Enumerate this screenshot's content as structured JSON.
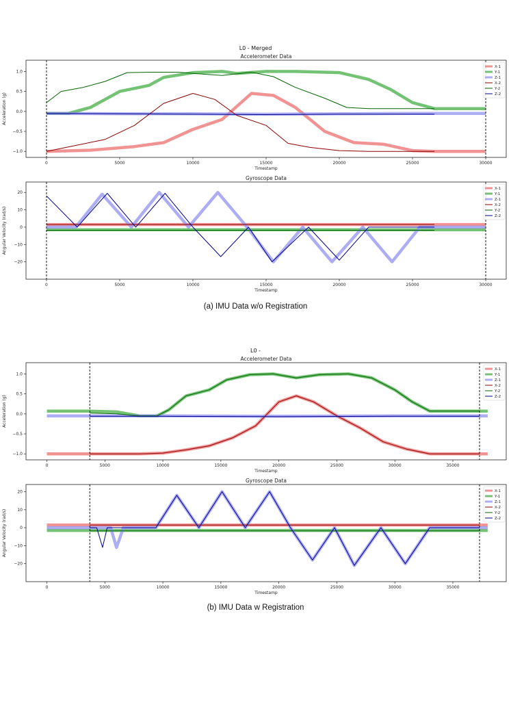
{
  "figures": [
    {
      "title": "L0 - Merged",
      "caption": "(a) IMU Data w/o Registration",
      "split_id": "a"
    },
    {
      "title": "L0 -",
      "caption": "(b) IMU Data w Registration",
      "split_id": "b"
    }
  ],
  "legend_labels": [
    "X-1",
    "Y-1",
    "Z-1",
    "X-2",
    "Y-2",
    "Z-2"
  ],
  "colors": {
    "x1": "#f08080",
    "y1": "#5cb85c",
    "z1": "#8a8aee",
    "x2": "#8b0000",
    "y2": "#006400",
    "z2": "#00008b"
  },
  "chart_data": [
    {
      "id": "a-acc",
      "type": "line",
      "title": "Accelerometer Data",
      "xlabel": "Timestamp",
      "ylabel": "Acceleration (g)",
      "xlim": [
        -1400,
        31400
      ],
      "ylim": [
        -1.15,
        1.28
      ],
      "xticks": [
        0,
        5000,
        10000,
        15000,
        20000,
        25000,
        30000
      ],
      "yticks": [
        -1.0,
        -0.5,
        0.0,
        0.5,
        1.0
      ],
      "ytick_labels": [
        "−1.0",
        "−0.5",
        "0.0",
        "0.5",
        "1.0"
      ],
      "vlines": [
        0,
        30000
      ],
      "series": [
        {
          "name": "X-1",
          "x": [
            0,
            3000,
            6000,
            8000,
            10000,
            12000,
            14000,
            15500,
            17000,
            19000,
            21000,
            23000,
            25000,
            26500,
            30000
          ],
          "y": [
            -1.0,
            -0.97,
            -0.88,
            -0.78,
            -0.45,
            -0.2,
            0.45,
            0.4,
            0.1,
            -0.5,
            -0.78,
            -0.82,
            -0.98,
            -1.0,
            -1.0
          ]
        },
        {
          "name": "Y-1",
          "x": [
            0,
            1500,
            3000,
            5000,
            7000,
            8000,
            10000,
            12000,
            13000,
            15000,
            17000,
            20000,
            22000,
            23500,
            25000,
            26500,
            30000
          ],
          "y": [
            -0.05,
            -0.05,
            0.1,
            0.5,
            0.65,
            0.85,
            0.97,
            1.0,
            0.95,
            1.0,
            1.0,
            0.97,
            0.8,
            0.55,
            0.22,
            0.07,
            0.07
          ]
        },
        {
          "name": "Z-1",
          "x": [
            0,
            5000,
            10000,
            15000,
            20000,
            25000,
            30000
          ],
          "y": [
            -0.05,
            -0.06,
            -0.06,
            -0.07,
            -0.06,
            -0.05,
            -0.05
          ]
        },
        {
          "name": "X-2",
          "x": [
            0,
            2000,
            4000,
            6000,
            8000,
            10000,
            11500,
            13000,
            15000,
            16500,
            18000,
            20000,
            22000,
            24000,
            26500
          ],
          "y": [
            -1.0,
            -0.85,
            -0.7,
            -0.35,
            0.2,
            0.45,
            0.3,
            -0.1,
            -0.35,
            -0.8,
            -0.9,
            -0.98,
            -1.0,
            -1.0,
            -1.0
          ]
        },
        {
          "name": "Y-2",
          "x": [
            0,
            1000,
            2500,
            4000,
            5500,
            7000,
            9000,
            10000,
            12000,
            14000,
            15500,
            17000,
            19000,
            20500,
            22000,
            24000,
            26500
          ],
          "y": [
            0.22,
            0.5,
            0.6,
            0.75,
            0.97,
            0.98,
            0.98,
            0.95,
            0.9,
            0.98,
            0.87,
            0.6,
            0.33,
            0.1,
            0.07,
            0.07,
            0.07
          ]
        },
        {
          "name": "Z-2",
          "x": [
            0,
            5000,
            10000,
            15000,
            20000,
            26500
          ],
          "y": [
            -0.05,
            -0.06,
            -0.07,
            -0.08,
            -0.07,
            -0.07
          ]
        }
      ]
    },
    {
      "id": "a-gyro",
      "type": "line",
      "title": "Gyroscope Data",
      "xlabel": "Timestamp",
      "ylabel": "Angular Velocity (rad/s)",
      "xlim": [
        -1400,
        31400
      ],
      "ylim": [
        -30,
        26
      ],
      "xticks": [
        0,
        5000,
        10000,
        15000,
        20000,
        25000,
        30000
      ],
      "yticks": [
        -20,
        -10,
        0,
        10,
        20
      ],
      "ytick_labels": [
        "−20",
        "−10",
        "0",
        "10",
        "20"
      ],
      "vlines": [
        0,
        30000
      ],
      "series": [
        {
          "name": "X-1",
          "x": [
            0,
            30000
          ],
          "y": [
            1.5,
            1.5
          ]
        },
        {
          "name": "Y-1",
          "x": [
            0,
            30000
          ],
          "y": [
            -1.5,
            -1.5
          ]
        },
        {
          "name": "Z-1",
          "x": [
            0,
            2000,
            3800,
            5800,
            7700,
            9700,
            11700,
            13700,
            15500,
            17500,
            19500,
            21600,
            23600,
            25500,
            30000
          ],
          "y": [
            0,
            0,
            19,
            0,
            20,
            0,
            20,
            0,
            -20,
            0,
            -20,
            0,
            -20,
            0,
            0
          ]
        },
        {
          "name": "X-2",
          "x": [
            0,
            26500
          ],
          "y": [
            1.5,
            1.5
          ]
        },
        {
          "name": "Y-2",
          "x": [
            0,
            26500
          ],
          "y": [
            -1.8,
            -1.8
          ]
        },
        {
          "name": "Z-2",
          "x": [
            0,
            2100,
            4150,
            6100,
            8100,
            10000,
            11900,
            13800,
            15400,
            17900,
            20000,
            22000,
            26500
          ],
          "y": [
            18,
            0,
            19.5,
            0,
            19.5,
            0,
            -17,
            0,
            -20,
            0,
            -19,
            0,
            0
          ]
        }
      ]
    },
    {
      "id": "b-acc",
      "type": "line",
      "title": "Accelerometer Data",
      "xlabel": "Timestamp",
      "ylabel": "Acceleration (g)",
      "xlim": [
        -1800,
        39600
      ],
      "ylim": [
        -1.15,
        1.28
      ],
      "xticks": [
        0,
        5000,
        10000,
        15000,
        20000,
        25000,
        30000,
        35000
      ],
      "yticks": [
        -1.0,
        -0.5,
        0.0,
        0.5,
        1.0
      ],
      "ytick_labels": [
        "−1.0",
        "−0.5",
        "0.0",
        "0.5",
        "1.0"
      ],
      "vlines": [
        3700,
        37300
      ],
      "series": [
        {
          "name": "X-1",
          "x": [
            0,
            8000,
            10000,
            12000,
            14000,
            16000,
            18000,
            20000,
            21500,
            23000,
            25000,
            27000,
            29000,
            31000,
            33000,
            38000
          ],
          "y": [
            -1.0,
            -1.0,
            -0.98,
            -0.9,
            -0.8,
            -0.6,
            -0.3,
            0.3,
            0.45,
            0.3,
            -0.05,
            -0.35,
            -0.7,
            -0.88,
            -1.0,
            -1.0
          ]
        },
        {
          "name": "Y-1",
          "x": [
            0,
            3500,
            6000,
            8000,
            9500,
            10500,
            12000,
            14000,
            15500,
            17500,
            19500,
            21500,
            23500,
            26000,
            28000,
            30000,
            31500,
            33000,
            38000
          ],
          "y": [
            0.07,
            0.07,
            0.05,
            -0.05,
            -0.05,
            0.1,
            0.45,
            0.6,
            0.85,
            0.98,
            1.0,
            0.9,
            0.98,
            1.0,
            0.9,
            0.6,
            0.3,
            0.07,
            0.07
          ]
        },
        {
          "name": "Z-1",
          "x": [
            0,
            10000,
            20000,
            30000,
            38000
          ],
          "y": [
            -0.05,
            -0.05,
            -0.06,
            -0.05,
            -0.05
          ]
        },
        {
          "name": "X-2",
          "x": [
            3700,
            8000,
            10000,
            12000,
            14000,
            16000,
            18000,
            20000,
            21500,
            23000,
            25000,
            27000,
            29000,
            31000,
            33000,
            37300
          ],
          "y": [
            -1.0,
            -1.0,
            -0.98,
            -0.9,
            -0.8,
            -0.6,
            -0.3,
            0.3,
            0.45,
            0.3,
            -0.05,
            -0.35,
            -0.7,
            -0.88,
            -1.0,
            -1.0
          ]
        },
        {
          "name": "Y-2",
          "x": [
            3700,
            6000,
            8000,
            9500,
            10500,
            12000,
            14000,
            15500,
            17500,
            19500,
            21500,
            23500,
            26000,
            28000,
            30000,
            31500,
            33000,
            37300
          ],
          "y": [
            0.02,
            0.0,
            -0.05,
            -0.05,
            0.1,
            0.45,
            0.6,
            0.85,
            0.98,
            1.0,
            0.9,
            0.98,
            1.0,
            0.9,
            0.6,
            0.3,
            0.07,
            0.07
          ]
        },
        {
          "name": "Z-2",
          "x": [
            3700,
            10000,
            20000,
            30000,
            37300
          ],
          "y": [
            -0.06,
            -0.06,
            -0.07,
            -0.06,
            -0.06
          ]
        }
      ]
    },
    {
      "id": "b-gyro",
      "type": "line",
      "title": "Gyroscope Data",
      "xlabel": "Timestamp",
      "ylabel": "Angular Velocity (rad/s)",
      "xlim": [
        -1800,
        39600
      ],
      "ylim": [
        -30,
        24
      ],
      "xticks": [
        0,
        5000,
        10000,
        15000,
        20000,
        25000,
        30000,
        35000
      ],
      "yticks": [
        -20,
        -10,
        0,
        10,
        20
      ],
      "ytick_labels": [
        "−20",
        "−10",
        "0",
        "10",
        "20"
      ],
      "vlines": [
        3700,
        37300
      ],
      "series": [
        {
          "name": "X-1",
          "x": [
            0,
            38000
          ],
          "y": [
            1.5,
            1.5
          ]
        },
        {
          "name": "Y-1",
          "x": [
            0,
            38000
          ],
          "y": [
            -1.5,
            -1.5
          ]
        },
        {
          "name": "Z-1",
          "x": [
            0,
            5500,
            6000,
            6600,
            9400,
            11200,
            13100,
            15100,
            17100,
            19200,
            21000,
            22900,
            24800,
            26500,
            28800,
            30900,
            33000,
            38000
          ],
          "y": [
            0,
            0,
            -11,
            0,
            0,
            18,
            0,
            20,
            0,
            20,
            0,
            -18,
            0,
            -21,
            0,
            -20,
            0,
            0
          ]
        },
        {
          "name": "X-2",
          "x": [
            3700,
            37300
          ],
          "y": [
            1.5,
            1.5
          ]
        },
        {
          "name": "Y-2",
          "x": [
            3700,
            37300
          ],
          "y": [
            -1.8,
            -1.8
          ]
        },
        {
          "name": "Z-2",
          "x": [
            3700,
            4300,
            4800,
            5200,
            9400,
            11200,
            13100,
            15100,
            17100,
            19200,
            21000,
            22900,
            24800,
            26500,
            28800,
            30900,
            33000,
            37300
          ],
          "y": [
            0,
            0,
            -11,
            0,
            0,
            18,
            0,
            20,
            0,
            20,
            0,
            -18,
            0,
            -21,
            0,
            -20,
            0,
            0
          ]
        }
      ]
    }
  ]
}
